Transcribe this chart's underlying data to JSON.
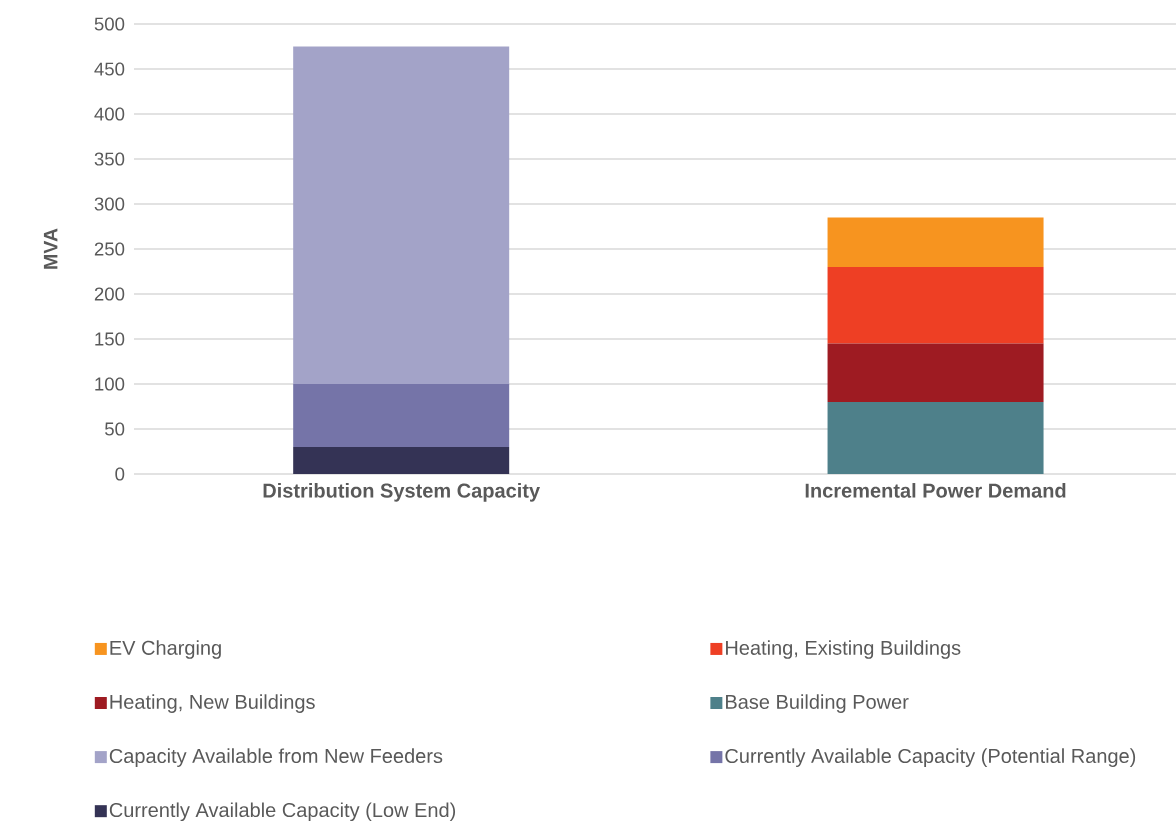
{
  "chart_data": {
    "type": "bar",
    "stacked": true,
    "categories": [
      "Distribution System Capacity",
      "Incremental Power Demand"
    ],
    "ylabel": "MVA",
    "ylim": [
      0,
      500
    ],
    "yticks": [
      0,
      50,
      100,
      150,
      200,
      250,
      300,
      350,
      400,
      450,
      500
    ],
    "grid": "y",
    "legend": "bottom",
    "series": [
      {
        "name": "Currently Available Capacity (Low End)",
        "color": "#343355",
        "values": [
          30,
          null
        ]
      },
      {
        "name": "Currently Available Capacity (Potential Range)",
        "color": "#7574a8",
        "values": [
          70,
          null
        ]
      },
      {
        "name": "Capacity Available from New Feeders",
        "color": "#a3a3c8",
        "values": [
          375,
          null
        ]
      },
      {
        "name": "Base Building Power",
        "color": "#4e808a",
        "values": [
          null,
          80
        ]
      },
      {
        "name": "Heating, New Buildings",
        "color": "#9e1b22",
        "values": [
          null,
          65
        ]
      },
      {
        "name": "Heating, Existing Buildings",
        "color": "#ee3f24",
        "values": [
          null,
          85
        ]
      },
      {
        "name": "EV Charging",
        "color": "#f7941f",
        "values": [
          null,
          55
        ]
      }
    ]
  }
}
